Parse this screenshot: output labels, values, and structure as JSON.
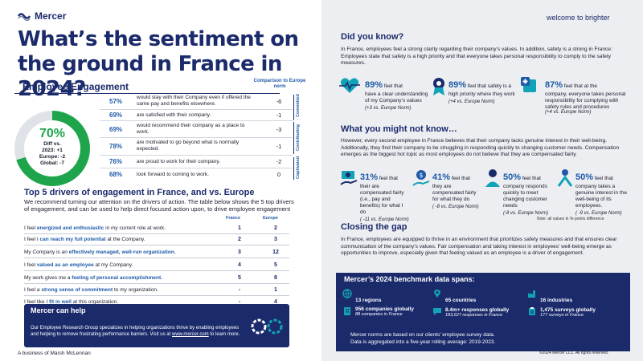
{
  "brand": {
    "logo_text": "Mercer",
    "tagline": "welcome to brighter"
  },
  "title": "What’s the sentiment on the ground in France in 2024?",
  "engagement": {
    "title": "Employee Engagement",
    "comparison_header": "Comparison to Europe norm",
    "score": "70%",
    "diff_label": "Diff vs.",
    "diff_2023": "2023: +1",
    "diff_europe": "Europe: -2",
    "diff_global": "Global: -7",
    "dimensions": [
      "Committed",
      "Contributing",
      "Captivated"
    ],
    "rows": [
      {
        "pct": "57%",
        "text": "would stay with their Company even if offered the same pay and benefits elsewhere.",
        "diff": "-6"
      },
      {
        "pct": "69%",
        "text": "are satisfied with their company.",
        "diff": "-1"
      },
      {
        "pct": "69%",
        "text": "would recommend their company as a place to work.",
        "diff": "-3"
      },
      {
        "pct": "78%",
        "text": "are motivated to go beyond what is normally expected.",
        "diff": "-1"
      },
      {
        "pct": "76%",
        "text": "are proud to work for their company.",
        "diff": "-2"
      },
      {
        "pct": "68%",
        "text": "look forward to coming to work.",
        "diff": "0"
      }
    ]
  },
  "drivers": {
    "title": "Top 5 drivers of engagement in France, and vs. Europe",
    "description": "We recommend turning our attention on the drivers of action. The table below shows the 5 top drivers of engagement, and can be used to help direct focused action upon, to drive employee engagement",
    "col_france": "France",
    "col_europe": "Europe",
    "rows": [
      {
        "pre": "I feel ",
        "hl": "energized and enthusiastic",
        "post": " in my current role at work.",
        "fr": "1",
        "eu": "2"
      },
      {
        "pre": "I feel I ",
        "hl": "can reach my full potential",
        "post": " at the Company.",
        "fr": "2",
        "eu": "3"
      },
      {
        "pre": "My Company is an ",
        "hl": "effectively managed, well-run organization.",
        "post": "",
        "fr": "3",
        "eu": "12"
      },
      {
        "pre": "I feel ",
        "hl": "valued as an employee",
        "post": " at my Company.",
        "fr": "4",
        "eu": "5"
      },
      {
        "pre": "My work gives me a ",
        "hl": "feeling of personal accomplishment.",
        "post": "",
        "fr": "5",
        "eu": "8"
      },
      {
        "pre": "I feel a ",
        "hl": "strong sense of commitment",
        "post": " to my organization.",
        "fr": "-",
        "eu": "1"
      },
      {
        "pre": "I feel like I ",
        "hl": "fit in well",
        "post": " at this organization.",
        "fr": "-",
        "eu": "4"
      }
    ]
  },
  "help": {
    "title": "Mercer can help",
    "text_pre": "Our Employee Research Group specializes in helping organizations thrive by enabling employees and helping to remove frustrating performance barriers. Visit us at ",
    "link": "www.mercer.com",
    "text_post": " to learn more."
  },
  "footer_left": "A business of Marsh McLennan",
  "did_you_know": {
    "title": "Did you know?",
    "text": "In France, employees feel a strong clarity regarding their company’s values. In addition, safety is a strong in France: Employees state that safety is a high priority and that everyone takes personal responsibility to comply to the safety measures.",
    "stats": [
      {
        "big": "89%",
        "lead": " feel that",
        "body": "have a clear understanding of my Company’s values",
        "note": "(+3 vs. Europe Norm)"
      },
      {
        "big": "89%",
        "lead": " feel that safety is a",
        "body": "high priority where they work",
        "note": "(+4 vs. Europe Norm)"
      },
      {
        "big": "87%",
        "lead": " feel that at the",
        "body": "company, everyone takes personal responsibility for complying with safety rules and procedures",
        "note": "(+4 vs. Europe Norm)"
      }
    ]
  },
  "might_not_know": {
    "title": "What you might not know…",
    "text": "However, every second employee in France believes that their company lacks genuine interest in their well-being. Additionally, they find their company to be struggling in responding quickly to changing customer needs. Compensation emerges as the biggest hot topic as most employees do not believe that they are compensated fairly.",
    "stats": [
      {
        "big": "31%",
        "lead": " feel that",
        "body": "their are compensated fairly (i.e., pay and benefits) for what I do",
        "note": "( -11 vs. Europe Norm)"
      },
      {
        "big": "41%",
        "lead": " feel that",
        "body": "they are compensated fairly for what they do",
        "note": "( -8 vs. Europe Norm)"
      },
      {
        "big": "50%",
        "lead": " feel that",
        "body": "company responds quickly to meet changing customer needs",
        "note": "(-8 vs. Europe Norm)"
      },
      {
        "big": "50%",
        "lead": " feel that",
        "body": "company takes a genuine interest in the well-being of its employees.",
        "note": "( -9 vs. Europe Norm)"
      }
    ],
    "note": "Note: all values in %-points difference"
  },
  "closing": {
    "title": "Closing the gap",
    "text": "In France, employees are equipped to thrive in an environment that prioritizes safety measures and that ensures clear communication of the company’s values. Fair compensation and taking interest in employees’ well-being emerge as opportunities to improve, especially given that feeling valued as an employee is a driver of engagement."
  },
  "benchmark": {
    "title": "Mercer’s 2024 benchmark data spans:",
    "regions": "13 regions",
    "countries": "65 countries",
    "industries": "16 industries",
    "companies_big": "956 companies globally",
    "companies_small": "88 companies in France",
    "responses_big": "8.4m+ responses globally",
    "responses_small": "183,627 responses in France",
    "surveys_big": "1,475  surveys globally",
    "surveys_small": "177  surveys in France",
    "foot1": "Mercer norms are based on our clients’ employee survey data.",
    "foot2": "Data is aggregated into a five-year rolling average: 2019-2023."
  },
  "copyright": "©2024 Mercer LLC. All rights reserved."
}
